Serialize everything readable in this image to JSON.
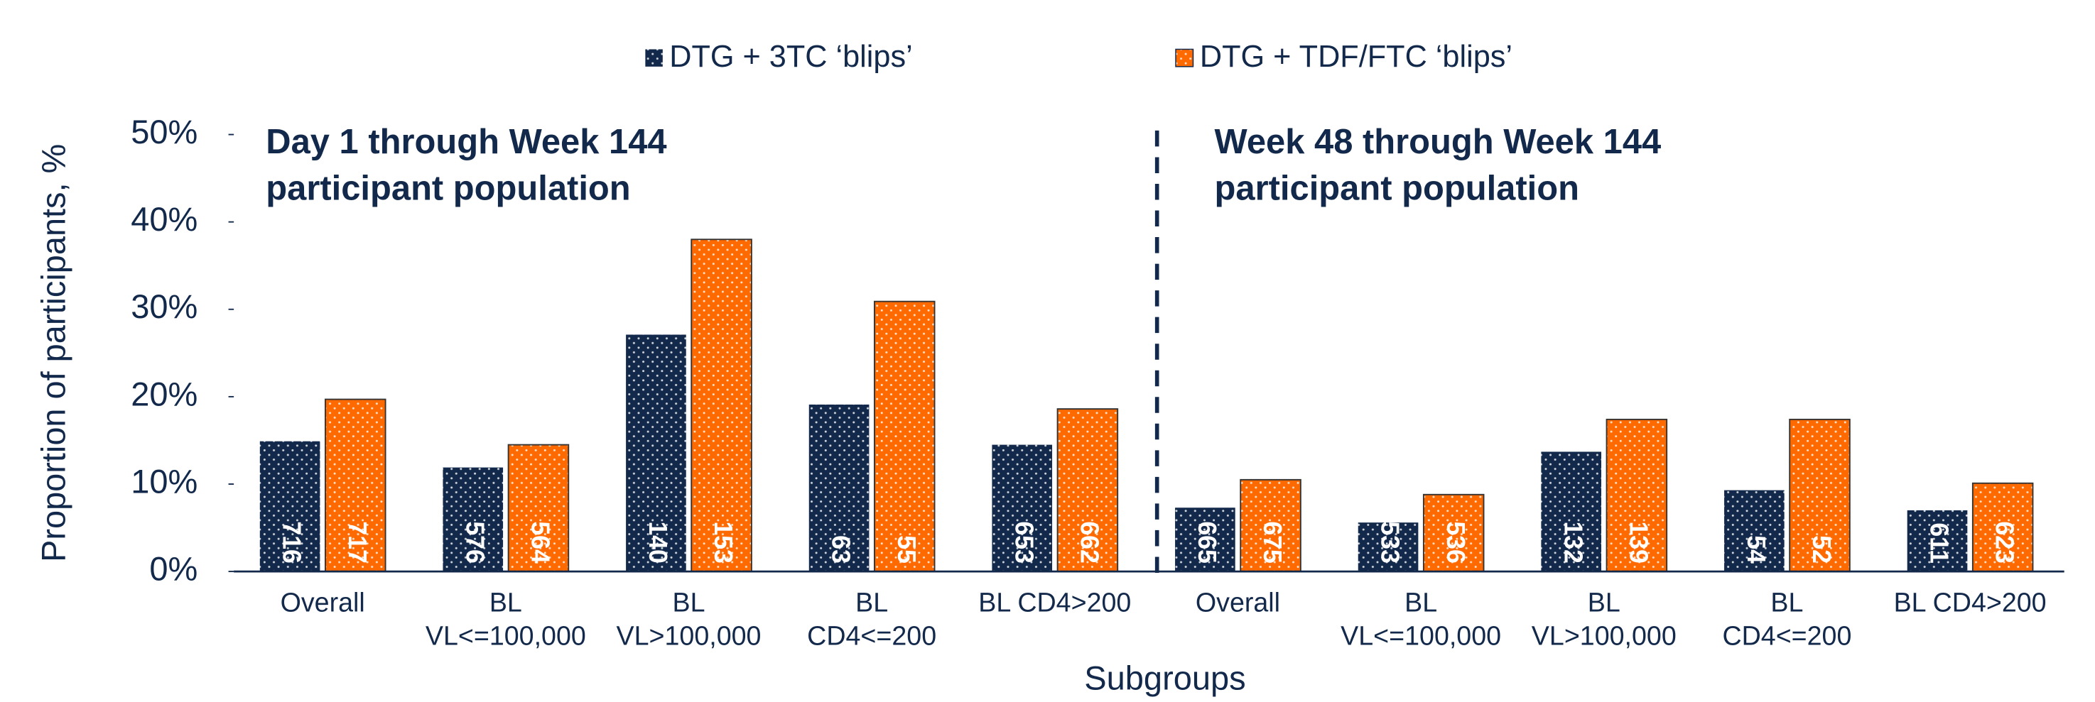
{
  "chart_data": {
    "type": "bar",
    "y_label": "Proportion of participants, %",
    "x_label": "Subgroups",
    "annotations": [
      "Day 1 through Week 144\nparticipant population",
      "Week 48 through Week 144\nparticipant population"
    ],
    "categories": [
      "Overall",
      "BL\nVL<=100,000",
      "BL\nVL>100,000",
      "BL\nCD4<=200",
      "BL CD4>200",
      "Overall",
      "BL\nVL<=100,000",
      "BL\nVL>100,000",
      "BL\nCD4<=200",
      "BL CD4>200"
    ],
    "series": [
      {
        "name": "DTG + 3TC ‘blips’",
        "color": "#13294b",
        "values": [
          14.9,
          11.9,
          27.1,
          19.1,
          14.5,
          7.3,
          5.6,
          13.7,
          9.3,
          7.0
        ],
        "n": [
          716,
          576,
          140,
          63,
          653,
          665,
          533,
          132,
          54,
          611
        ]
      },
      {
        "name": "DTG + TDF/FTC ‘blips’",
        "color": "#ff6a00",
        "values": [
          19.7,
          14.5,
          38.0,
          30.9,
          18.6,
          10.5,
          8.8,
          17.4,
          17.4,
          10.1
        ],
        "n": [
          717,
          564,
          153,
          55,
          662,
          675,
          536,
          139,
          52,
          623
        ]
      }
    ],
    "ylim": [
      0,
      50
    ],
    "yticks": [
      {
        "value": 0,
        "label": "0%"
      },
      {
        "value": 10,
        "label": "10%"
      },
      {
        "value": 20,
        "label": "20%"
      },
      {
        "value": 30,
        "label": "30%"
      },
      {
        "value": 40,
        "label": "40%"
      },
      {
        "value": 50,
        "label": "50%"
      }
    ],
    "grid": false,
    "legend": "top"
  }
}
